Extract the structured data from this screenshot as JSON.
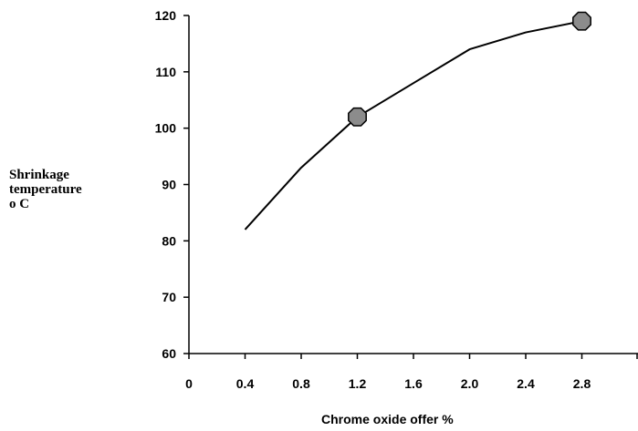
{
  "chart_data": {
    "type": "line",
    "title": "",
    "xlabel": "Chrome oxide offer %",
    "ylabel_lines": [
      "Shrinkage",
      "temperature",
      "o C"
    ],
    "x_ticks": [
      "0",
      "0.4",
      "0.8",
      "1.2",
      "1.6",
      "2.0",
      "2.4",
      "2.8"
    ],
    "y_ticks": [
      "60",
      "70",
      "80",
      "90",
      "100",
      "110",
      "120"
    ],
    "xlim": [
      0,
      3.2
    ],
    "ylim": [
      60,
      120
    ],
    "grid": false,
    "legend": "none",
    "series": [
      {
        "x": [
          0.4,
          0.8,
          1.2,
          1.6,
          2.0,
          2.4,
          2.8
        ],
        "y": [
          82,
          93,
          102,
          108,
          114,
          117,
          119
        ],
        "line_color": "#000000"
      }
    ],
    "highlighted_points": [
      {
        "x": 1.2,
        "y": 102
      },
      {
        "x": 2.8,
        "y": 119
      }
    ],
    "marker_fill": "#8c8c8c",
    "marker_stroke": "#000000"
  }
}
